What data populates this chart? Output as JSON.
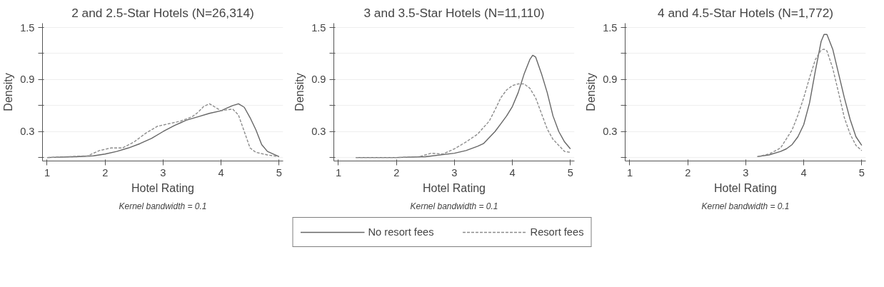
{
  "chart_data": [
    {
      "type": "line",
      "title": "2 and 2.5-Star Hotels (N=26,314)",
      "xlabel": "Hotel Rating",
      "ylabel": "Density",
      "annotations": [
        "Kernel bandwidth = 0.1"
      ],
      "xlim": [
        0.92,
        5.07
      ],
      "ylim": [
        -0.04,
        1.55
      ],
      "xticks": [
        1,
        2,
        3,
        4,
        5
      ],
      "yticks": [
        {
          "value": 0,
          "label": null
        },
        0.3,
        {
          "value": 0.6,
          "label": null
        },
        0.9,
        {
          "value": 1.2,
          "label": null
        },
        1.5
      ],
      "grid": "y",
      "legend": "bottom",
      "series": [
        {
          "name": "No resort fees",
          "color": "#666666",
          "line_style": "solid",
          "x": [
            1,
            1.5,
            1.8,
            2.0,
            2.2,
            2.4,
            2.6,
            2.8,
            3.0,
            3.2,
            3.4,
            3.6,
            3.8,
            4.0,
            4.1,
            4.2,
            4.3,
            4.4,
            4.5,
            4.6,
            4.7,
            4.8,
            5.0
          ],
          "values": [
            0.0,
            0.01,
            0.02,
            0.04,
            0.07,
            0.11,
            0.16,
            0.22,
            0.3,
            0.37,
            0.43,
            0.47,
            0.51,
            0.54,
            0.57,
            0.6,
            0.62,
            0.58,
            0.46,
            0.32,
            0.15,
            0.07,
            0.01
          ]
        },
        {
          "name": "Resort fees",
          "color": "#8c8c8c",
          "line_style": "dashed",
          "x": [
            1,
            1.7,
            1.9,
            2.1,
            2.3,
            2.5,
            2.7,
            2.9,
            3.1,
            3.3,
            3.5,
            3.6,
            3.7,
            3.8,
            3.9,
            4.0,
            4.1,
            4.2,
            4.3,
            4.4,
            4.5,
            4.6,
            4.8,
            5.0
          ],
          "values": [
            0.0,
            0.02,
            0.08,
            0.11,
            0.11,
            0.18,
            0.28,
            0.36,
            0.39,
            0.42,
            0.47,
            0.52,
            0.59,
            0.62,
            0.58,
            0.54,
            0.55,
            0.56,
            0.49,
            0.3,
            0.11,
            0.06,
            0.03,
            0.01
          ]
        }
      ]
    },
    {
      "type": "line",
      "title": "3 and 3.5-Star Hotels (N=11,110)",
      "xlabel": "Hotel Rating",
      "ylabel": "Density",
      "annotations": [
        "Kernel bandwidth = 0.1"
      ],
      "xlim": [
        0.92,
        5.07
      ],
      "ylim": [
        -0.04,
        1.55
      ],
      "xticks": [
        1,
        2,
        3,
        4,
        5
      ],
      "yticks": [
        {
          "value": 0,
          "label": null
        },
        0.3,
        {
          "value": 0.6,
          "label": null
        },
        0.9,
        {
          "value": 1.2,
          "label": null
        },
        1.5
      ],
      "grid": "y",
      "series": [
        {
          "color": "#666666",
          "line_style": "solid",
          "x": [
            1.3,
            2.0,
            2.5,
            3.0,
            3.2,
            3.4,
            3.5,
            3.6,
            3.7,
            3.8,
            3.9,
            4.0,
            4.1,
            4.2,
            4.3,
            4.35,
            4.4,
            4.5,
            4.6,
            4.7,
            4.8,
            4.9,
            5.0
          ],
          "values": [
            0.0,
            0.0,
            0.01,
            0.05,
            0.08,
            0.13,
            0.16,
            0.23,
            0.3,
            0.39,
            0.48,
            0.59,
            0.75,
            0.96,
            1.13,
            1.18,
            1.16,
            0.97,
            0.75,
            0.48,
            0.3,
            0.18,
            0.1
          ]
        },
        {
          "color": "#8c8c8c",
          "line_style": "dashed",
          "x": [
            1.3,
            2.0,
            2.4,
            2.6,
            2.8,
            3.0,
            3.2,
            3.4,
            3.6,
            3.7,
            3.8,
            3.9,
            4.0,
            4.1,
            4.2,
            4.3,
            4.4,
            4.5,
            4.6,
            4.7,
            4.8,
            4.9,
            5.0
          ],
          "values": [
            0.0,
            0.0,
            0.01,
            0.05,
            0.04,
            0.1,
            0.18,
            0.27,
            0.42,
            0.55,
            0.69,
            0.78,
            0.83,
            0.85,
            0.85,
            0.8,
            0.69,
            0.51,
            0.33,
            0.21,
            0.14,
            0.07,
            0.06
          ]
        }
      ]
    },
    {
      "type": "line",
      "title": "4 and 4.5-Star Hotels (N=1,772)",
      "xlabel": "Hotel Rating",
      "ylabel": "Density",
      "annotations": [
        "Kernel bandwidth = 0.1"
      ],
      "xlim": [
        0.92,
        5.07
      ],
      "ylim": [
        -0.04,
        1.55
      ],
      "xticks": [
        1,
        2,
        3,
        4,
        5
      ],
      "yticks": [
        {
          "value": 0,
          "label": null
        },
        0.3,
        {
          "value": 0.6,
          "label": null
        },
        0.9,
        {
          "value": 1.2,
          "label": null
        },
        1.5
      ],
      "grid": "y",
      "series": [
        {
          "color": "#666666",
          "line_style": "solid",
          "x": [
            3.2,
            3.4,
            3.6,
            3.7,
            3.8,
            3.9,
            4.0,
            4.1,
            4.2,
            4.3,
            4.35,
            4.4,
            4.5,
            4.6,
            4.7,
            4.8,
            4.9,
            5.0
          ],
          "values": [
            0.01,
            0.03,
            0.07,
            0.1,
            0.15,
            0.24,
            0.38,
            0.63,
            1.0,
            1.34,
            1.42,
            1.42,
            1.25,
            0.97,
            0.69,
            0.44,
            0.24,
            0.14
          ]
        },
        {
          "color": "#8c8c8c",
          "line_style": "dashed",
          "x": [
            3.2,
            3.4,
            3.6,
            3.8,
            3.9,
            4.0,
            4.1,
            4.2,
            4.3,
            4.35,
            4.4,
            4.5,
            4.6,
            4.7,
            4.8,
            4.9,
            5.0
          ],
          "values": [
            0.01,
            0.04,
            0.11,
            0.32,
            0.49,
            0.69,
            0.92,
            1.13,
            1.24,
            1.25,
            1.23,
            1.03,
            0.75,
            0.46,
            0.27,
            0.14,
            0.08
          ]
        }
      ]
    }
  ]
}
